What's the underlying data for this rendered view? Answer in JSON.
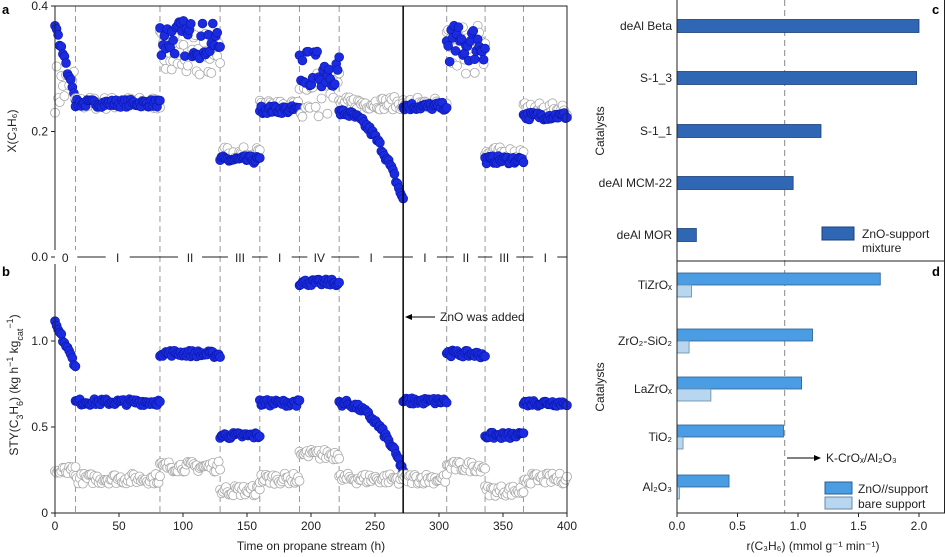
{
  "chart_data": [
    {
      "panel": "a",
      "type": "scatter",
      "ylabel": "X(C₃H₆)",
      "xlim": [
        0,
        400
      ],
      "ylim": [
        0,
        0.4
      ],
      "yticks": [
        "0.0",
        "0.2",
        "0.4"
      ],
      "colors": {
        "with_zno": "#1a2be0",
        "without_zno": "#a8a8a8"
      },
      "segments": [
        {
          "label": "0",
          "t": [
            0,
            16
          ],
          "blue": [
            0.37,
            0.25
          ],
          "grey": 0.27
        },
        {
          "label": "I",
          "t": [
            16,
            82
          ],
          "blue": [
            0.245,
            0.245
          ],
          "grey": 0.245
        },
        {
          "label": "II",
          "t": [
            82,
            129
          ],
          "blue": [
            0.35,
            0.34
          ],
          "grey": 0.32
        },
        {
          "label": "III",
          "t": [
            129,
            160
          ],
          "blue": [
            0.155,
            0.155
          ],
          "grey": 0.165
        },
        {
          "label": "I",
          "t": [
            160,
            191
          ],
          "blue": [
            0.235,
            0.235
          ],
          "grey": 0.24
        },
        {
          "label": "IV",
          "t": [
            191,
            222
          ],
          "blue": [
            0.3,
            0.3
          ],
          "grey": 0.26
        },
        {
          "label": "I",
          "t": [
            222,
            272
          ],
          "blue": [
            0.23,
            0.09
          ],
          "grey": 0.245
        },
        {
          "label": "I",
          "t": [
            272,
            306
          ],
          "blue": [
            0.24,
            0.24
          ],
          "grey": 0.245
        },
        {
          "label": "II",
          "t": [
            306,
            336
          ],
          "blue": [
            0.34,
            0.34
          ],
          "grey": 0.33
        },
        {
          "label": "III",
          "t": [
            336,
            366
          ],
          "blue": [
            0.155,
            0.155
          ],
          "grey": 0.165
        },
        {
          "label": "I",
          "t": [
            366,
            400
          ],
          "blue": [
            0.225,
            0.225
          ],
          "grey": 0.235
        }
      ]
    },
    {
      "panel": "b",
      "type": "scatter",
      "xlabel": "Time on propane stream (h)",
      "ylabel_parts": [
        "STY(C",
        "3",
        "H",
        "6",
        ") (kg h",
        "−1",
        " kg",
        "cat",
        "−1",
        ")"
      ],
      "xlim": [
        0,
        400
      ],
      "ylim": [
        0,
        1.5
      ],
      "xticks": [
        "0",
        "50",
        "100",
        "150",
        "200",
        "250",
        "300",
        "350",
        "400"
      ],
      "yticks": [
        "0",
        "0.5",
        "1.0"
      ],
      "annotation": "ZnO was added",
      "zno_added_time": 272,
      "segments": [
        {
          "t": [
            0,
            16
          ],
          "blue": [
            1.1,
            0.86
          ],
          "grey": 0.24
        },
        {
          "t": [
            16,
            82
          ],
          "blue": [
            0.645,
            0.645
          ],
          "grey": 0.2
        },
        {
          "t": [
            82,
            129
          ],
          "blue": [
            0.93,
            0.92
          ],
          "grey": 0.27
        },
        {
          "t": [
            129,
            160
          ],
          "blue": [
            0.45,
            0.45
          ],
          "grey": 0.13
        },
        {
          "t": [
            160,
            191
          ],
          "blue": [
            0.64,
            0.64
          ],
          "grey": 0.2
        },
        {
          "t": [
            191,
            222
          ],
          "blue": [
            1.34,
            1.34
          ],
          "grey": 0.34
        },
        {
          "t": [
            222,
            272
          ],
          "blue": [
            0.64,
            0.25
          ],
          "grey": 0.2
        },
        {
          "t": [
            272,
            306
          ],
          "blue": [
            0.65,
            0.65
          ],
          "grey": 0.2
        },
        {
          "t": [
            306,
            336
          ],
          "blue": [
            0.93,
            0.92
          ],
          "grey": 0.27
        },
        {
          "t": [
            336,
            366
          ],
          "blue": [
            0.45,
            0.45
          ],
          "grey": 0.13
        },
        {
          "t": [
            366,
            400
          ],
          "blue": [
            0.64,
            0.64
          ],
          "grey": 0.2
        }
      ]
    },
    {
      "panel": "c",
      "type": "bar",
      "orientation": "horizontal",
      "ylabel": "Catalysts",
      "categories": [
        "deAl Beta",
        "S-1_3",
        "S-1_1",
        "deAl MCM-22",
        "deAl MOR"
      ],
      "series": [
        {
          "name": "ZnO-support mixture",
          "values": [
            2.0,
            1.98,
            1.19,
            0.96,
            0.16
          ],
          "color": "#2f67b5"
        }
      ],
      "reference_line": 0.89,
      "legend": [
        "ZnO-support",
        "mixture"
      ],
      "legend_placement": "bottom-right"
    },
    {
      "panel": "d",
      "type": "bar",
      "orientation": "horizontal",
      "ylabel": "Catalysts",
      "xlabel": "r(C₃H₆) (mmol g⁻¹ min⁻¹)",
      "xlim": [
        0,
        2.2
      ],
      "xticks": [
        "0.0",
        "0.5",
        "1.0",
        "1.5",
        "2.0"
      ],
      "categories": [
        "TiZrOₓ",
        "ZrO₂-SiO₂",
        "LaZrOₓ",
        "TiO₂",
        "Al₂O₃"
      ],
      "series": [
        {
          "name": "ZnO//support",
          "values": [
            1.68,
            1.12,
            1.03,
            0.88,
            0.43
          ],
          "color": "#4a9de2"
        },
        {
          "name": "bare support",
          "values": [
            0.12,
            0.1,
            0.28,
            0.05,
            0.02
          ],
          "color": "#b7d6ef"
        }
      ],
      "reference_line": 0.89,
      "annotation": "K-CrOₓ/Al₂O₃",
      "legend_placement": "bottom-right"
    }
  ],
  "panel_labels": [
    "a",
    "b",
    "c",
    "d"
  ]
}
